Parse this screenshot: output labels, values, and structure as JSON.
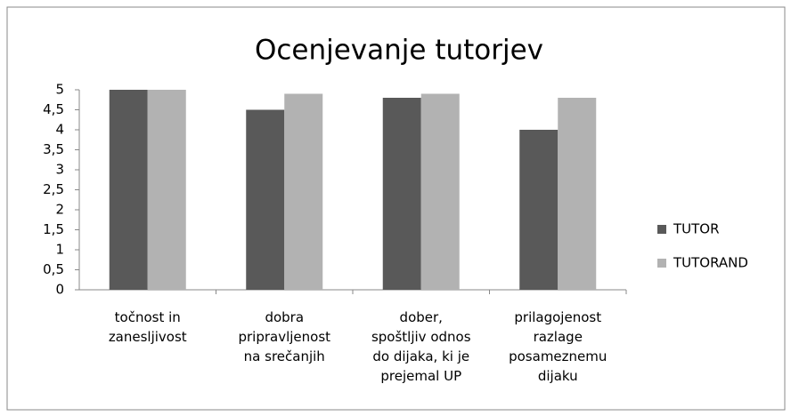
{
  "chart_data": {
    "type": "bar",
    "title": "Ocenjevanje tutorjev",
    "categories": [
      "točnost in\nzanesljivost",
      "dobra\npripravljenost\nna srečanjih",
      "dober,\nspoštljiv odnos\ndo dijaka, ki je\nprejemal UP",
      "prilagojenost\nrazlage\nposameznemu\ndijaku"
    ],
    "series": [
      {
        "name": "TUTOR",
        "color": "#595959",
        "values": [
          5,
          4.5,
          4.8,
          4.0
        ]
      },
      {
        "name": "TUTORAND",
        "color": "#b2b2b2",
        "values": [
          5,
          4.9,
          4.9,
          4.8
        ]
      }
    ],
    "ylim": [
      0,
      5
    ],
    "yticks": [
      0,
      {
        "value": 0.5,
        "label": "0,5"
      },
      1,
      {
        "value": 1.5,
        "label": "1,5"
      },
      2,
      {
        "value": 2.5,
        "label": "2,5"
      },
      3,
      {
        "value": 3.5,
        "label": "3,5"
      },
      4,
      {
        "value": 4.5,
        "label": "4,5"
      },
      5
    ],
    "grid": false,
    "legend": "right"
  }
}
